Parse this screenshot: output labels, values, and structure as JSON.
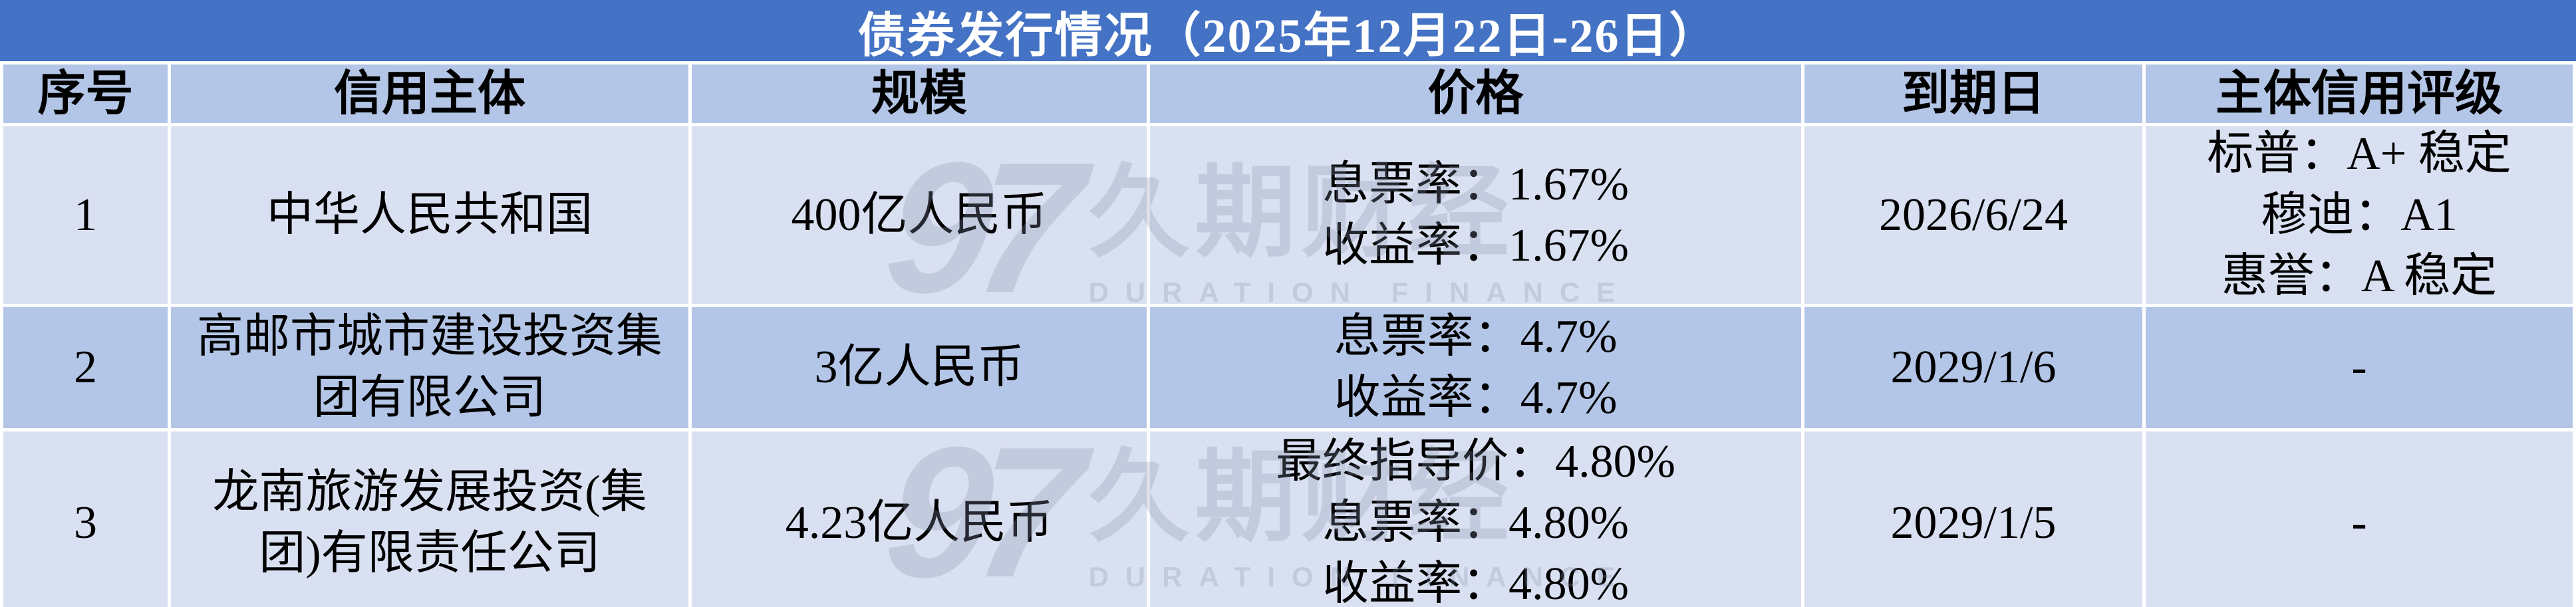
{
  "title": "债券发行情况（2025年12月22日-26日）",
  "header": {
    "no": "序号",
    "issuer": "信用主体",
    "size": "规模",
    "price": "价格",
    "maturity": "到期日",
    "rating": "主体信用评级"
  },
  "rows": [
    {
      "no": "1",
      "issuer": [
        "中华人民共和国"
      ],
      "size": "400亿人民币",
      "price": [
        "息票率：1.67%",
        "收益率：1.67%"
      ],
      "maturity": "2026/6/24",
      "rating": [
        "标普：A+ 稳定",
        "穆迪：A1",
        "惠誉：A 稳定"
      ]
    },
    {
      "no": "2",
      "issuer": [
        "高邮市城市建设投资集",
        "团有限公司"
      ],
      "size": "3亿人民币",
      "price": [
        "息票率：4.7%",
        "收益率：4.7%"
      ],
      "maturity": "2029/1/6",
      "rating": [
        "-"
      ]
    },
    {
      "no": "3",
      "issuer": [
        "龙南旅游发展投资(集",
        "团)有限责任公司"
      ],
      "size": "4.23亿人民币",
      "price": [
        "最终指导价：4.80%",
        "息票率：4.80%",
        "收益率：4.80%"
      ],
      "maturity": "2029/1/5",
      "rating": [
        "-"
      ]
    }
  ],
  "watermark": {
    "logo": "97",
    "name": "久期财经",
    "subtitle": "DURATION FINANCE"
  },
  "colors": {
    "title_bg": "#4472C4",
    "title_text": "#FFFFFF",
    "header_bg": "#B4C6E7",
    "row_odd_bg": "#D9E0F1",
    "row_even_bg": "#B4C6E7",
    "grid_line": "#FFFFFF",
    "body_text": "#000000",
    "watermark": "#8A94B0"
  },
  "chart_data": {
    "type": "table",
    "title": "债券发行情况（2025年12月22日-26日）",
    "columns": [
      "序号",
      "信用主体",
      "规模",
      "价格",
      "到期日",
      "主体信用评级"
    ],
    "rows": [
      [
        "1",
        "中华人民共和国",
        "400亿人民币",
        "息票率：1.67%\n收益率：1.67%",
        "2026/6/24",
        "标普：A+ 稳定\n穆迪：A1\n惠誉：A 稳定"
      ],
      [
        "2",
        "高邮市城市建设投资集团有限公司",
        "3亿人民币",
        "息票率：4.7%\n收益率：4.7%",
        "2029/1/6",
        "-"
      ],
      [
        "3",
        "龙南旅游发展投资(集团)有限责任公司",
        "4.23亿人民币",
        "最终指导价：4.80%\n息票率：4.80%\n收益率：4.80%",
        "2029/1/5",
        "-"
      ]
    ],
    "layout": {
      "banding": "alternating light/medium blue rows",
      "gridlines": "white",
      "watermark_repeats": 2
    }
  }
}
